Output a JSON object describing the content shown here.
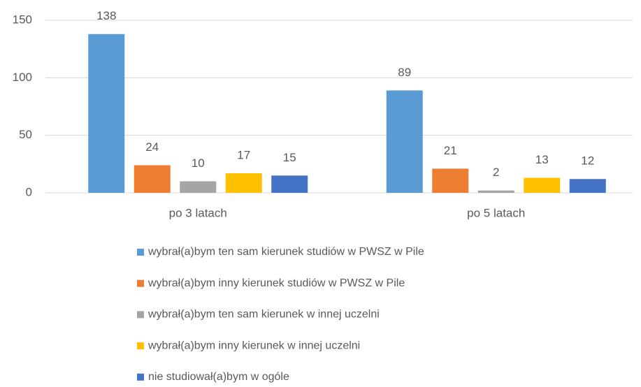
{
  "chart_data": {
    "type": "bar",
    "categories": [
      "po 3 latach",
      "po 5 latach"
    ],
    "series": [
      {
        "name": "wybrał(a)bym ten sam kierunek studiów w PWSZ w Pile",
        "color": "#5b9bd5",
        "values": [
          138,
          89
        ]
      },
      {
        "name": "wybrał(a)bym inny kierunek studiów w PWSZ w Pile",
        "color": "#ed7d31",
        "values": [
          24,
          21
        ]
      },
      {
        "name": "wybrał(a)bym ten sam kierunek w innej uczelni",
        "color": "#a5a5a5",
        "values": [
          10,
          2
        ]
      },
      {
        "name": "wybrał(a)bym inny kierunek w innej uczelni",
        "color": "#ffc000",
        "values": [
          17,
          13
        ]
      },
      {
        "name": "nie studiował(a)bym w ogóle",
        "color": "#4472c4",
        "values": [
          15,
          12
        ]
      }
    ],
    "ylim": [
      0,
      150
    ],
    "yticks": [
      0,
      50,
      100,
      150
    ],
    "grid": true,
    "legend": "bottom"
  }
}
